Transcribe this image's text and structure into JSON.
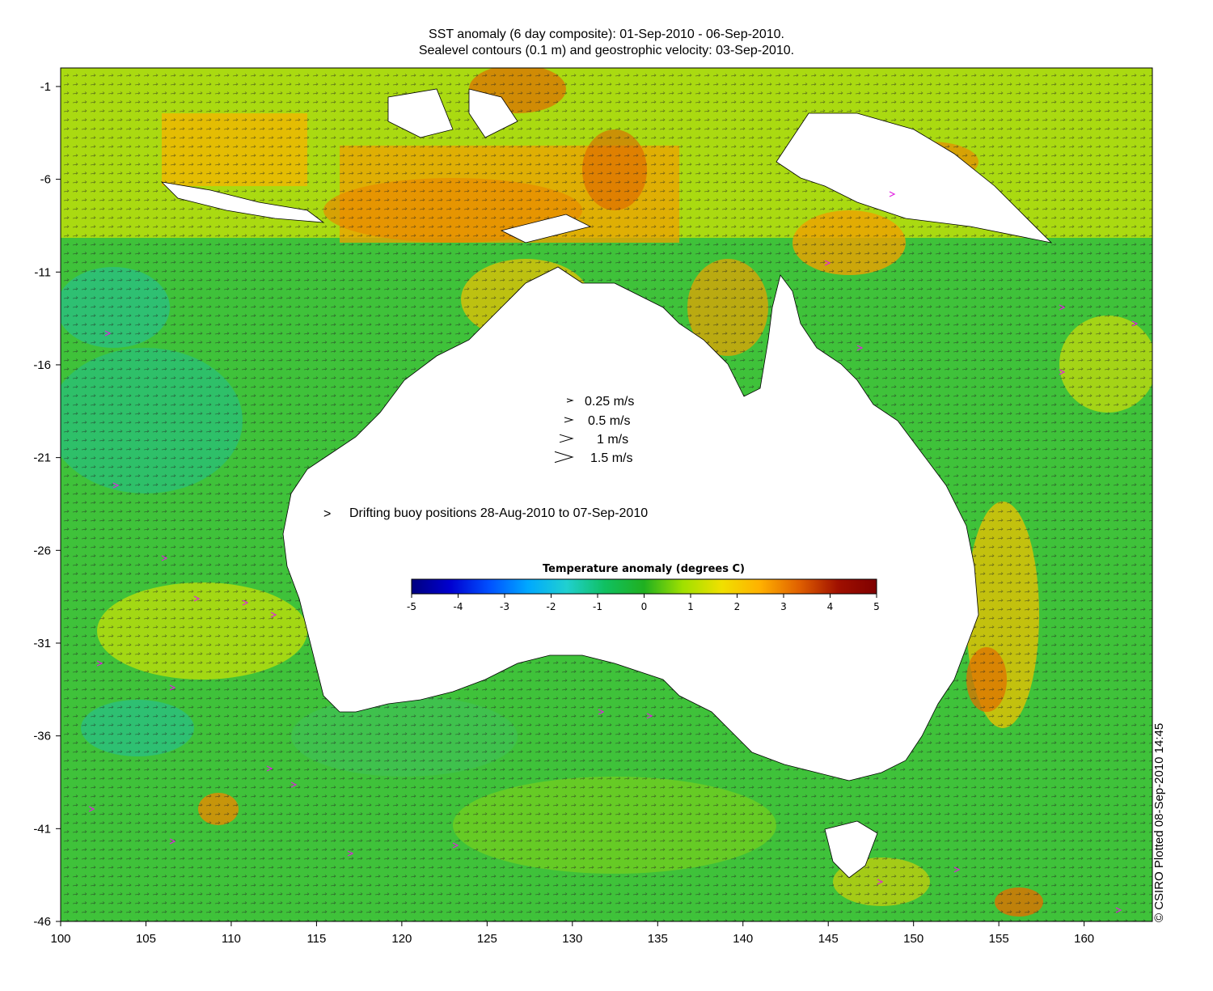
{
  "title": {
    "line1": "SST anomaly (6 day composite): 01-Sep-2010 - 06-Sep-2010.",
    "line2": "Sealevel contours (0.1 m) and geostrophic velocity: 03-Sep-2010."
  },
  "map_extent": {
    "lon_min": 100,
    "lon_max": 164,
    "lat_min": -46,
    "lat_max": 0
  },
  "x_axis": {
    "ticks": [
      "100",
      "105",
      "110",
      "115",
      "120",
      "125",
      "130",
      "135",
      "140",
      "145",
      "150",
      "155",
      "160"
    ]
  },
  "y_axis": {
    "ticks": [
      "-1",
      "-6",
      "-11",
      "-16",
      "-21",
      "-26",
      "-31",
      "-36",
      "-41",
      "-46"
    ]
  },
  "velocity_legend": [
    {
      "label": "0.25 m/s",
      "speed": 0.25
    },
    {
      "label": "0.5 m/s",
      "speed": 0.5
    },
    {
      "label": "1 m/s",
      "speed": 1
    },
    {
      "label": "1.5 m/s",
      "speed": 1.5
    }
  ],
  "buoy_legend": {
    "symbol": ">",
    "label": "Drifting buoy positions 28-Aug-2010 to 07-Sep-2010",
    "color": "#e020e0"
  },
  "colorbar": {
    "title": "Temperature anomaly (degrees C)",
    "min": -5,
    "max": 5,
    "ticks": [
      "-5",
      "-4",
      "-3",
      "-2",
      "-1",
      "0",
      "1",
      "2",
      "3",
      "4",
      "5"
    ],
    "colors": [
      "#00007f",
      "#0000d0",
      "#0050ff",
      "#00a8ff",
      "#20d0d0",
      "#10c060",
      "#20b020",
      "#a0e000",
      "#f0e000",
      "#ffb000",
      "#e06000",
      "#a01000",
      "#7f0000"
    ]
  },
  "ocean_color": "#3fc23a",
  "land_color": "#ffffff",
  "credit": "© CSIRO Plotted 08-Sep-2010 14:45"
}
